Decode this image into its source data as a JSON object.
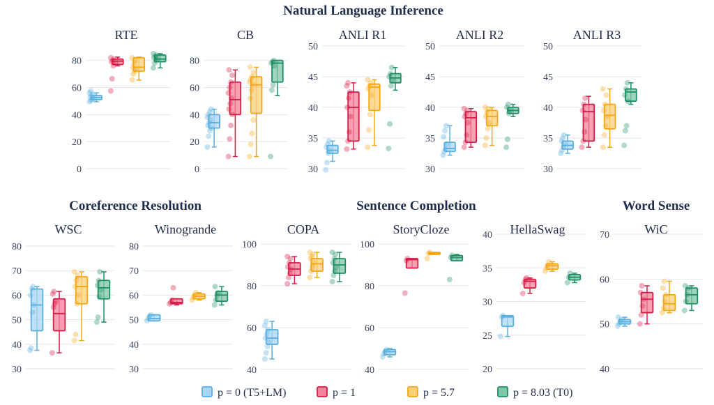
{
  "legend": [
    {
      "name": "p = 0 (T5+LM)",
      "color": "#5aaee0",
      "fill": "#a9d6f2"
    },
    {
      "name": "p = 1",
      "color": "#d81b45",
      "fill": "#f2849b"
    },
    {
      "name": "p = 5.7",
      "color": "#f5a614",
      "fill": "#fbd07a"
    },
    {
      "name": "p = 8.03 (T0)",
      "color": "#1e8f63",
      "fill": "#7fc7a6"
    }
  ],
  "group_titles": [
    {
      "text": "Natural Language Inference"
    },
    {
      "text": "Coreference Resolution"
    },
    {
      "text": "Sentence Completion"
    },
    {
      "text": "Word Sense"
    }
  ],
  "chart_data": [
    {
      "type": "box",
      "title": "RTE",
      "ylim": [
        0,
        85
      ],
      "yticks": [
        0,
        20,
        40,
        60,
        80
      ],
      "series": [
        {
          "name": "p = 0 (T5+LM)",
          "q1": 51,
          "median": 52.5,
          "q3": 54,
          "whisker_low": 49.5,
          "whisker_high": 56,
          "points": [
            49.5,
            50.5,
            51,
            52,
            53,
            54,
            55,
            56,
            57.5
          ]
        },
        {
          "name": "p = 1",
          "q1": 77,
          "median": 79.5,
          "q3": 81,
          "whisker_low": 76,
          "whisker_high": 82.5,
          "points": [
            57.5,
            66.5,
            76,
            78,
            79,
            80,
            81,
            82
          ]
        },
        {
          "name": "p = 5.7",
          "q1": 72,
          "median": 75,
          "q3": 82,
          "whisker_low": 65.5,
          "whisker_high": 82.5,
          "points": [
            65.5,
            70,
            72,
            74,
            75,
            78,
            80,
            82
          ]
        },
        {
          "name": "p = 8.03 (T0)",
          "q1": 79,
          "median": 81,
          "q3": 84,
          "whisker_low": 74.5,
          "whisker_high": 85,
          "points": [
            74.5,
            78,
            80,
            81,
            82,
            83,
            84,
            85
          ]
        }
      ]
    },
    {
      "type": "box",
      "title": "CB",
      "ylim": [
        0,
        85
      ],
      "yticks": [
        0,
        20,
        40,
        60,
        80
      ],
      "series": [
        {
          "name": "p = 0 (T5+LM)",
          "q1": 30,
          "median": 34,
          "q3": 40,
          "whisker_low": 16,
          "whisker_high": 44,
          "points": [
            16,
            24,
            28,
            30,
            32,
            34,
            36,
            38,
            40,
            42,
            44
          ]
        },
        {
          "name": "p = 1",
          "q1": 40,
          "median": 51,
          "q3": 64,
          "whisker_low": 9,
          "whisker_high": 73,
          "points": [
            9,
            22,
            32,
            40,
            44,
            48,
            52,
            56,
            60,
            64,
            69,
            73
          ]
        },
        {
          "name": "p = 5.7",
          "q1": 41,
          "median": 62,
          "q3": 68,
          "whisker_low": 9,
          "whisker_high": 75,
          "points": [
            9,
            18,
            26,
            36,
            52,
            58,
            62,
            64,
            66,
            68,
            71,
            75
          ]
        },
        {
          "name": "p = 8.03 (T0)",
          "q1": 64,
          "median": 78,
          "q3": 80,
          "whisker_low": 54,
          "whisker_high": 80,
          "points": [
            9,
            58,
            62,
            76,
            78,
            79,
            80
          ]
        }
      ]
    },
    {
      "type": "box",
      "title": "ANLI R1",
      "ylim": [
        30,
        50
      ],
      "yticks": [
        30,
        35,
        40,
        45,
        50
      ],
      "series": [
        {
          "name": "p = 0 (T5+LM)",
          "q1": 32.5,
          "median": 33,
          "q3": 33.8,
          "whisker_low": 31.2,
          "whisker_high": 34.5,
          "points": [
            29.8,
            31,
            32.5,
            33,
            33.5,
            34,
            34.5
          ]
        },
        {
          "name": "p = 1",
          "q1": 34.5,
          "median": 40,
          "q3": 42.5,
          "whisker_low": 33.2,
          "whisker_high": 44,
          "points": [
            33.2,
            34.5,
            36,
            38.5,
            40,
            41.5,
            42.5,
            43.5,
            44
          ]
        },
        {
          "name": "p = 5.7",
          "q1": 39.5,
          "median": 43.3,
          "q3": 43.8,
          "whisker_low": 33.8,
          "whisker_high": 44.5,
          "points": [
            33.5,
            36.3,
            38.8,
            42,
            43,
            43.5,
            44,
            44.5
          ]
        },
        {
          "name": "p = 8.03 (T0)",
          "q1": 44,
          "median": 44.8,
          "q3": 45.5,
          "whisker_low": 42.8,
          "whisker_high": 46.5,
          "points": [
            33.3,
            37.3,
            43.5,
            44.5,
            45,
            45.5,
            46.5
          ]
        }
      ]
    },
    {
      "type": "box",
      "title": "ANLI R2",
      "ylim": [
        30,
        50
      ],
      "yticks": [
        30,
        35,
        40,
        45,
        50
      ],
      "series": [
        {
          "name": "p = 0 (T5+LM)",
          "q1": 32.8,
          "median": 33.3,
          "q3": 34.3,
          "whisker_low": 32.2,
          "whisker_high": 37,
          "points": [
            32.2,
            32.8,
            33.2,
            34,
            35.2,
            36.2,
            37
          ]
        },
        {
          "name": "p = 1",
          "q1": 34.3,
          "median": 38.3,
          "q3": 39.3,
          "whisker_low": 33.5,
          "whisker_high": 39.8,
          "points": [
            33.5,
            34.3,
            35.5,
            37.5,
            38.5,
            39,
            39.5,
            39.8
          ]
        },
        {
          "name": "p = 5.7",
          "q1": 37,
          "median": 38.5,
          "q3": 39.5,
          "whisker_low": 33.8,
          "whisker_high": 40,
          "points": [
            33.8,
            35,
            36.5,
            37.5,
            38.5,
            39.2,
            39.8,
            40
          ]
        },
        {
          "name": "p = 8.03 (T0)",
          "q1": 39,
          "median": 39.5,
          "q3": 40,
          "whisker_low": 38.5,
          "whisker_high": 40.5,
          "points": [
            33.5,
            34.8,
            39,
            39.5,
            40,
            40.5
          ]
        }
      ]
    },
    {
      "type": "box",
      "title": "ANLI R3",
      "ylim": [
        30,
        50
      ],
      "yticks": [
        30,
        35,
        40,
        45,
        50
      ],
      "series": [
        {
          "name": "p = 0 (T5+LM)",
          "q1": 33.2,
          "median": 33.8,
          "q3": 34.5,
          "whisker_low": 32.5,
          "whisker_high": 35.5,
          "points": [
            32.5,
            33,
            33.5,
            34,
            34.5,
            35,
            35.5
          ]
        },
        {
          "name": "p = 1",
          "q1": 34.5,
          "median": 39.3,
          "q3": 40.5,
          "whisker_low": 33.5,
          "whisker_high": 41.8,
          "points": [
            33.5,
            34.5,
            36,
            38,
            39.5,
            40.5,
            41.5
          ]
        },
        {
          "name": "p = 5.7",
          "q1": 36.5,
          "median": 38.7,
          "q3": 40.5,
          "whisker_low": 33.5,
          "whisker_high": 43,
          "points": [
            33.5,
            35.5,
            37,
            38.5,
            39.5,
            40.5,
            42,
            43
          ]
        },
        {
          "name": "p = 8.03 (T0)",
          "q1": 41,
          "median": 42.5,
          "q3": 43,
          "whisker_low": 40.5,
          "whisker_high": 44,
          "points": [
            33.8,
            36.2,
            37,
            41,
            42,
            43,
            44
          ]
        }
      ]
    },
    {
      "type": "box",
      "title": "WSC",
      "ylim": [
        30,
        80
      ],
      "yticks": [
        30,
        40,
        50,
        60,
        70,
        80
      ],
      "series": [
        {
          "name": "p = 0 (T5+LM)",
          "q1": 45.5,
          "median": 56,
          "q3": 62.5,
          "whisker_low": 37.5,
          "whisker_high": 63.5,
          "points": [
            37.5,
            38.5,
            53,
            56,
            60,
            62.5,
            63.5
          ]
        },
        {
          "name": "p = 1",
          "q1": 45.5,
          "median": 52.5,
          "q3": 58.5,
          "whisker_low": 36.5,
          "whisker_high": 61.5,
          "points": [
            36.5,
            55,
            56.5,
            57.5,
            60.5,
            61.5
          ]
        },
        {
          "name": "p = 5.7",
          "q1": 56.5,
          "median": 63.5,
          "q3": 67.5,
          "whisker_low": 41.5,
          "whisker_high": 69.5,
          "points": [
            41.5,
            44,
            56.5,
            60,
            63.5,
            66,
            68,
            69.5
          ]
        },
        {
          "name": "p = 8.03 (T0)",
          "q1": 58.5,
          "median": 63,
          "q3": 66,
          "whisker_low": 49,
          "whisker_high": 69.5,
          "points": [
            49,
            51,
            59.5,
            62,
            64,
            66,
            69.5
          ]
        }
      ]
    },
    {
      "type": "box",
      "title": "Winogrande",
      "ylim": [
        30,
        80
      ],
      "yticks": [
        30,
        40,
        50,
        60,
        70,
        80
      ],
      "series": [
        {
          "name": "p = 0 (T5+LM)",
          "q1": 49.5,
          "median": 50.5,
          "q3": 52,
          "whisker_low": 49.5,
          "whisker_high": 52,
          "points": [
            49.5,
            50.5,
            51.5,
            52
          ]
        },
        {
          "name": "p = 1",
          "q1": 56.5,
          "median": 57,
          "q3": 58.5,
          "whisker_low": 56,
          "whisker_high": 58.5,
          "points": [
            56.5,
            57,
            58,
            63
          ]
        },
        {
          "name": "p = 5.7",
          "q1": 58.5,
          "median": 59.5,
          "q3": 60.5,
          "whisker_low": 58,
          "whisker_high": 61,
          "points": [
            58,
            59,
            60,
            61
          ]
        },
        {
          "name": "p = 8.03 (T0)",
          "q1": 57.5,
          "median": 60,
          "q3": 61.5,
          "whisker_low": 56,
          "whisker_high": 63.5,
          "points": [
            56,
            58,
            60,
            61,
            63.5
          ]
        }
      ]
    },
    {
      "type": "box",
      "title": "COPA",
      "ylim": [
        40,
        100
      ],
      "yticks": [
        40,
        60,
        80,
        100
      ],
      "series": [
        {
          "name": "p = 0 (T5+LM)",
          "q1": 52,
          "median": 55,
          "q3": 59,
          "whisker_low": 45,
          "whisker_high": 63,
          "points": [
            45,
            48,
            51,
            53,
            55,
            57,
            59,
            61,
            63
          ]
        },
        {
          "name": "p = 1",
          "q1": 85,
          "median": 88,
          "q3": 91,
          "whisker_low": 81,
          "whisker_high": 94,
          "points": [
            81,
            84,
            86,
            88,
            89,
            91,
            93,
            94
          ]
        },
        {
          "name": "p = 5.7",
          "q1": 87,
          "median": 90.5,
          "q3": 93,
          "whisker_low": 84,
          "whisker_high": 96,
          "points": [
            84,
            87,
            89,
            91,
            93,
            94,
            95,
            96
          ]
        },
        {
          "name": "p = 8.03 (T0)",
          "q1": 86,
          "median": 90,
          "q3": 93,
          "whisker_low": 82,
          "whisker_high": 96,
          "points": [
            82,
            85,
            87,
            89,
            91,
            93,
            95,
            96
          ]
        }
      ]
    },
    {
      "type": "box",
      "title": "StoryCloze",
      "ylim": [
        40,
        100
      ],
      "yticks": [
        40,
        60,
        80,
        100
      ],
      "series": [
        {
          "name": "p = 0 (T5+LM)",
          "q1": 47,
          "median": 48.5,
          "q3": 49.5,
          "whisker_low": 46,
          "whisker_high": 50,
          "points": [
            46,
            47.5,
            48.5,
            49.5
          ]
        },
        {
          "name": "p = 1",
          "q1": 88.5,
          "median": 92.5,
          "q3": 93,
          "whisker_low": 88.5,
          "whisker_high": 93,
          "points": [
            76.5,
            92,
            93
          ]
        },
        {
          "name": "p = 5.7",
          "q1": 95,
          "median": 95.5,
          "q3": 96,
          "whisker_low": 95,
          "whisker_high": 96,
          "points": [
            93,
            95.5,
            96
          ]
        },
        {
          "name": "p = 8.03 (T0)",
          "q1": 92,
          "median": 93.5,
          "q3": 94.5,
          "whisker_low": 92,
          "whisker_high": 95,
          "points": [
            83,
            93.5,
            94.5
          ]
        }
      ]
    },
    {
      "type": "box",
      "title": "HellaSwag",
      "ylim": [
        20,
        40
      ],
      "yticks": [
        20,
        25,
        30,
        35,
        40
      ],
      "series": [
        {
          "name": "p = 0 (T5+LM)",
          "q1": 26.3,
          "median": 27.7,
          "q3": 27.9,
          "whisker_low": 24.8,
          "whisker_high": 27.9,
          "points": [
            24.8,
            27.7,
            27.9
          ]
        },
        {
          "name": "p = 1",
          "q1": 32,
          "median": 33,
          "q3": 33.3,
          "whisker_low": 31.2,
          "whisker_high": 33.5,
          "points": [
            31.2,
            32.8,
            33.3,
            33.5
          ]
        },
        {
          "name": "p = 5.7",
          "q1": 34.8,
          "median": 35.3,
          "q3": 35.6,
          "whisker_low": 34.5,
          "whisker_high": 35.9,
          "points": [
            34.5,
            35,
            35.4,
            35.9
          ]
        },
        {
          "name": "p = 8.03 (T0)",
          "q1": 33.2,
          "median": 33.6,
          "q3": 34,
          "whisker_low": 32.8,
          "whisker_high": 34.2,
          "points": [
            32.8,
            33.6,
            34.2
          ]
        }
      ]
    },
    {
      "type": "box",
      "title": "WiC",
      "ylim": [
        40,
        70
      ],
      "yticks": [
        40,
        50,
        60,
        70
      ],
      "series": [
        {
          "name": "p = 0 (T5+LM)",
          "q1": 50,
          "median": 50.5,
          "q3": 51,
          "whisker_low": 49.5,
          "whisker_high": 51.5,
          "points": [
            49.5,
            50,
            50.5,
            51,
            51.5
          ]
        },
        {
          "name": "p = 1",
          "q1": 52.5,
          "median": 55.5,
          "q3": 57,
          "whisker_low": 50,
          "whisker_high": 58.5,
          "points": [
            50,
            52,
            54,
            55.5,
            57,
            58.5
          ]
        },
        {
          "name": "p = 5.7",
          "q1": 53,
          "median": 54.5,
          "q3": 56.5,
          "whisker_low": 52.5,
          "whisker_high": 59.5,
          "points": [
            52.5,
            53.5,
            55,
            56.5,
            58,
            59.5
          ]
        },
        {
          "name": "p = 8.03 (T0)",
          "q1": 54.5,
          "median": 56.5,
          "q3": 58,
          "whisker_low": 53,
          "whisker_high": 58.5,
          "points": [
            53,
            55,
            56.5,
            58,
            58.5
          ]
        }
      ]
    }
  ]
}
